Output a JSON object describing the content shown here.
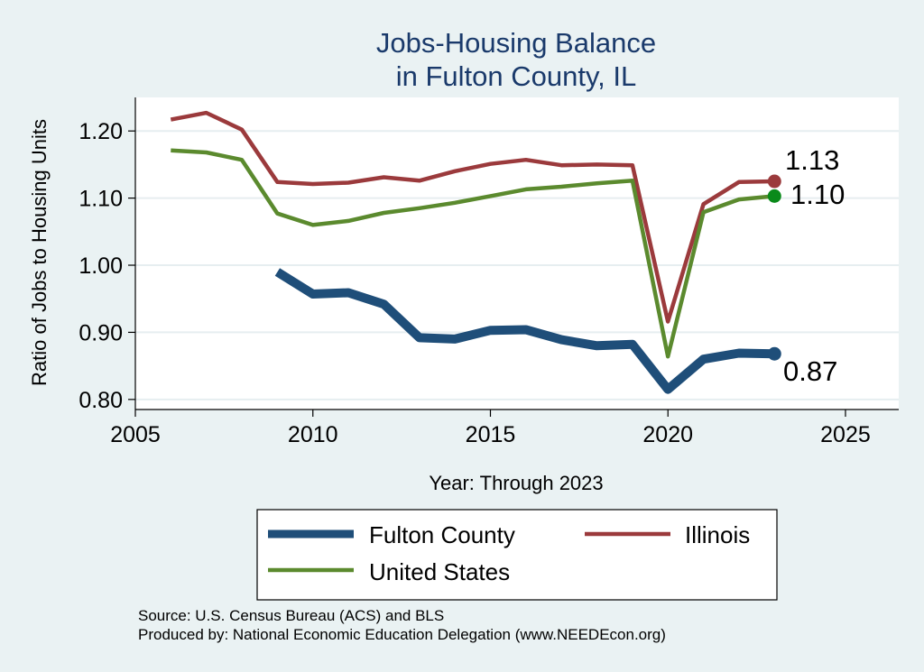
{
  "chart_data": {
    "type": "line",
    "title": [
      "Jobs-Housing Balance",
      "in Fulton County, IL"
    ],
    "xlabel": "Year: Through 2023",
    "ylabel": "Ratio of Jobs to Housing Units",
    "xlim": [
      2005,
      2026.5
    ],
    "ylim": [
      0.785,
      1.25
    ],
    "xticks": [
      2005,
      2010,
      2015,
      2020,
      2025
    ],
    "yticks": [
      0.8,
      0.9,
      1.0,
      1.1,
      1.2
    ],
    "ytick_labels": [
      "0.80",
      "0.90",
      "1.00",
      "1.10",
      "1.20"
    ],
    "grid": true,
    "legend_position": "bottom",
    "series": [
      {
        "name": "Fulton County",
        "color": "#1f4e79",
        "width": "thick",
        "end_label": "0.87",
        "x": [
          2009,
          2010,
          2011,
          2012,
          2013,
          2014,
          2015,
          2016,
          2017,
          2018,
          2019,
          2020,
          2021,
          2022,
          2023
        ],
        "values": [
          0.99,
          0.957,
          0.959,
          0.942,
          0.892,
          0.89,
          0.903,
          0.904,
          0.889,
          0.88,
          0.882,
          0.815,
          0.86,
          0.869,
          0.868
        ]
      },
      {
        "name": "Illinois",
        "color": "#9b3a3c",
        "width": "medium",
        "end_label": "1.13",
        "x": [
          2006,
          2007,
          2008,
          2009,
          2010,
          2011,
          2012,
          2013,
          2014,
          2015,
          2016,
          2017,
          2018,
          2019,
          2020,
          2021,
          2022,
          2023
        ],
        "values": [
          1.217,
          1.227,
          1.202,
          1.124,
          1.121,
          1.123,
          1.131,
          1.126,
          1.14,
          1.151,
          1.157,
          1.149,
          1.15,
          1.149,
          0.916,
          1.091,
          1.124,
          1.125
        ]
      },
      {
        "name": "United States",
        "color": "#5b8a2e",
        "width": "medium",
        "end_label": "1.10",
        "x": [
          2006,
          2007,
          2008,
          2009,
          2010,
          2011,
          2012,
          2013,
          2014,
          2015,
          2016,
          2017,
          2018,
          2019,
          2020,
          2021,
          2022,
          2023
        ],
        "values": [
          1.171,
          1.168,
          1.157,
          1.077,
          1.06,
          1.066,
          1.078,
          1.085,
          1.093,
          1.103,
          1.113,
          1.117,
          1.122,
          1.126,
          0.864,
          1.079,
          1.098,
          1.103
        ]
      }
    ]
  },
  "source_lines": [
    "Source: U.S. Census Bureau (ACS) and BLS",
    "Produced by: National Economic Education Delegation (www.NEEDEcon.org)"
  ],
  "colors": {
    "background": "#eaf2f3",
    "plot_background": "#ffffff",
    "title": "#1a3a6b",
    "fulton_marker": "#1f4e79",
    "illinois_marker": "#9b3a3c",
    "us_marker": "#0a8a1a"
  }
}
